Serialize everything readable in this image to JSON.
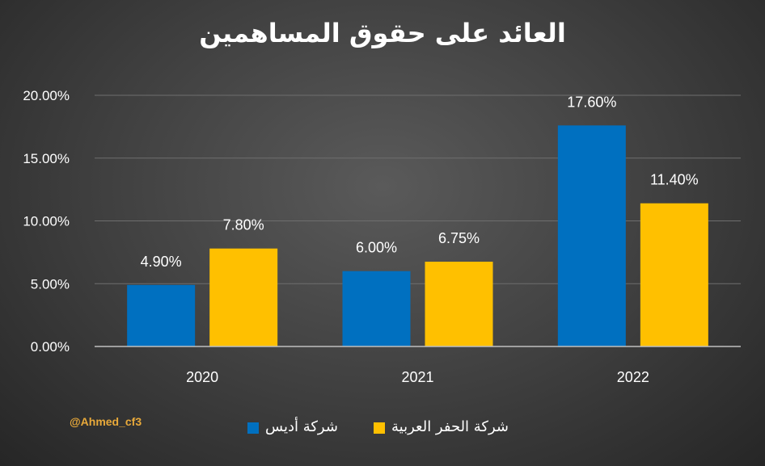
{
  "chart_data": {
    "type": "bar",
    "title": "العائد على حقوق المساهمين",
    "categories": [
      "2020",
      "2021",
      "2022"
    ],
    "series": [
      {
        "name": "شركة أديس",
        "color": "#0070c0",
        "values": [
          4.9,
          6.0,
          17.6
        ],
        "labels": [
          "4.90%",
          "6.00%",
          "17.60%"
        ]
      },
      {
        "name": "شركة الحفر العربية",
        "color": "#ffc000",
        "values": [
          7.8,
          6.75,
          11.4
        ],
        "labels": [
          "7.80%",
          "6.75%",
          "11.40%"
        ]
      }
    ],
    "ylim": [
      0,
      20
    ],
    "yticks": [
      0,
      5,
      10,
      15,
      20
    ],
    "ytick_labels": [
      "0.00%",
      "5.00%",
      "10.00%",
      "15.00%",
      "20.00%"
    ],
    "grid": true,
    "legend_position": "bottom"
  },
  "credit": "@Ahmed_cf3"
}
